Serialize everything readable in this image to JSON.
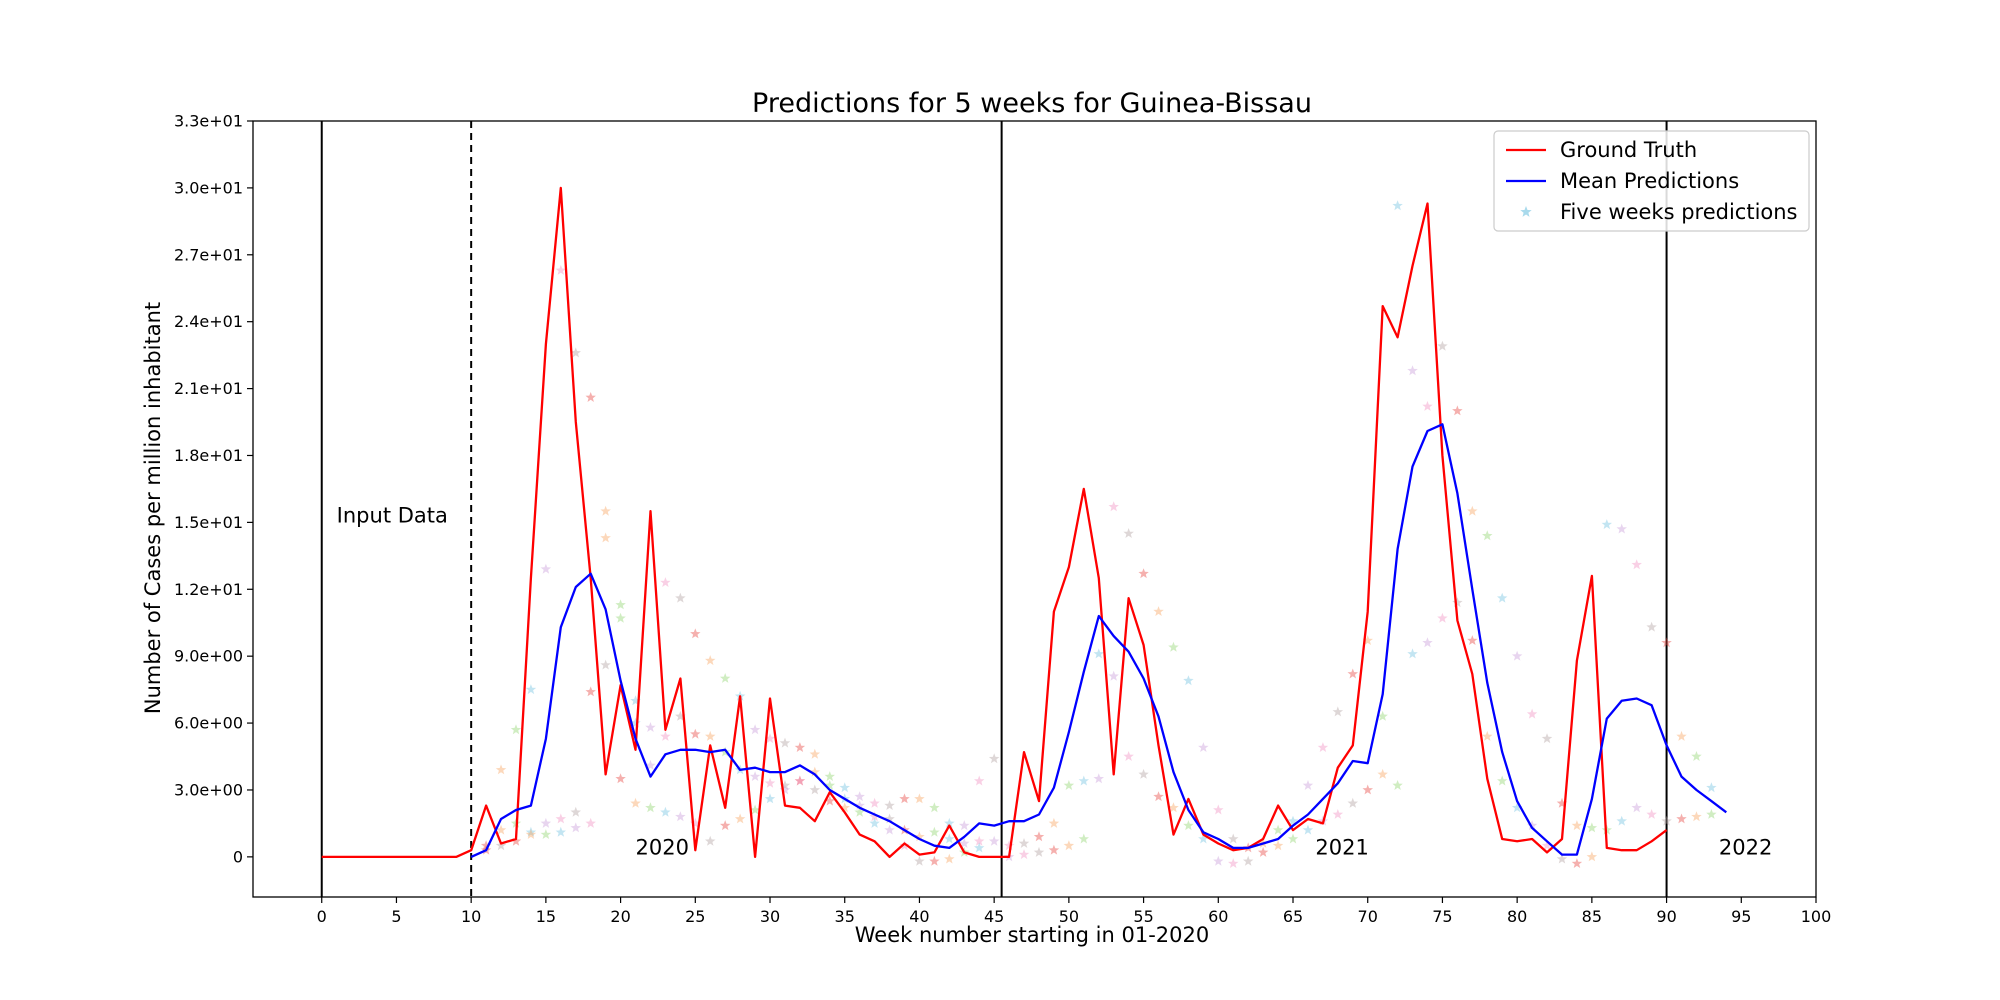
{
  "chart_data": {
    "type": "line",
    "title": "Predictions for 5 weeks for Guinea-Bissau",
    "xlabel": "Week number starting in 01-2020",
    "ylabel": "Number of Cases per million inhabitant",
    "xlim": [
      -4.6,
      100
    ],
    "ylim": [
      -1.8,
      33
    ],
    "x_ticks": [
      0,
      5,
      10,
      15,
      20,
      25,
      30,
      35,
      40,
      45,
      50,
      55,
      60,
      65,
      70,
      75,
      80,
      85,
      90,
      95,
      100
    ],
    "x_tick_labels": [
      "0",
      "5",
      "10",
      "15",
      "20",
      "25",
      "30",
      "35",
      "40",
      "45",
      "50",
      "55",
      "60",
      "65",
      "70",
      "75",
      "80",
      "85",
      "90",
      "95",
      "100"
    ],
    "y_ticks": [
      0,
      3,
      6,
      9,
      12,
      15,
      18,
      21,
      24,
      27,
      30,
      33
    ],
    "y_tick_labels": [
      "0",
      "3.0e+00",
      "6.0e+00",
      "9.0e+00",
      "1.2e+01",
      "1.5e+01",
      "1.8e+01",
      "2.1e+01",
      "2.4e+01",
      "2.7e+01",
      "3.0e+01",
      "3.3e+01"
    ],
    "grid": false,
    "legend_position": "top-right",
    "vertical_lines": [
      {
        "x": 0,
        "style": "solid"
      },
      {
        "x": 10,
        "style": "dashed"
      },
      {
        "x": 45.5,
        "style": "solid"
      },
      {
        "x": 90,
        "style": "solid"
      }
    ],
    "annotations": [
      {
        "text": "Input Data",
        "x": 1,
        "y": 15
      },
      {
        "text": "2020",
        "x": 21,
        "y": 0.1
      },
      {
        "text": "2021",
        "x": 66.5,
        "y": 0.1
      },
      {
        "text": "2022",
        "x": 93.5,
        "y": 0.1
      }
    ],
    "series": [
      {
        "name": "Ground Truth",
        "kind": "line",
        "color": "#ff0000",
        "x": [
          0,
          1,
          2,
          3,
          4,
          5,
          6,
          7,
          8,
          9,
          10,
          11,
          12,
          13,
          14,
          15,
          16,
          17,
          18,
          19,
          20,
          21,
          22,
          23,
          24,
          25,
          26,
          27,
          28,
          29,
          30,
          31,
          32,
          33,
          34,
          35,
          36,
          37,
          38,
          39,
          40,
          41,
          42,
          43,
          44,
          45,
          46,
          47,
          48,
          49,
          50,
          51,
          52,
          53,
          54,
          55,
          56,
          57,
          58,
          59,
          60,
          61,
          62,
          63,
          64,
          65,
          66,
          67,
          68,
          69,
          70,
          71,
          72,
          73,
          74,
          75,
          76,
          77,
          78,
          79,
          80,
          81,
          82,
          83,
          84,
          85,
          86,
          87,
          88,
          89,
          90
        ],
        "y": [
          0,
          0,
          0,
          0,
          0,
          0,
          0,
          0,
          0,
          0,
          0.3,
          2.3,
          0.6,
          0.8,
          12.5,
          23,
          30,
          19.5,
          12.5,
          3.7,
          7.7,
          4.8,
          15.5,
          5.7,
          8,
          0.3,
          5,
          2.2,
          7.2,
          0,
          7.1,
          2.3,
          2.2,
          1.6,
          2.9,
          2,
          1,
          0.7,
          0,
          0.6,
          0.1,
          0.2,
          1.4,
          0.2,
          0,
          0,
          0,
          4.7,
          2.5,
          11,
          13,
          16.5,
          12.5,
          3.7,
          11.6,
          9.5,
          5,
          1,
          2.6,
          1,
          0.6,
          0.3,
          0.4,
          0.8,
          2.3,
          1.2,
          1.7,
          1.5,
          4,
          5,
          11,
          24.7,
          23.3,
          26.5,
          29.3,
          18,
          10.6,
          8.2,
          3.5,
          0.8,
          0.7,
          0.8,
          0.2,
          0.8,
          8.8,
          12.6,
          0.4,
          0.3,
          0.3,
          0.7,
          1.2
        ]
      },
      {
        "name": "Mean Predictions",
        "kind": "line",
        "color": "#0000ff",
        "x": [
          10,
          11,
          12,
          13,
          14,
          15,
          16,
          17,
          18,
          19,
          20,
          21,
          22,
          23,
          24,
          25,
          26,
          27,
          28,
          29,
          30,
          31,
          32,
          33,
          34,
          35,
          36,
          37,
          38,
          39,
          40,
          41,
          42,
          43,
          44,
          45,
          46,
          47,
          48,
          49,
          50,
          51,
          52,
          53,
          54,
          55,
          56,
          57,
          58,
          59,
          60,
          61,
          62,
          63,
          64,
          65,
          66,
          67,
          68,
          69,
          70,
          71,
          72,
          73,
          74,
          75,
          76,
          77,
          78,
          79,
          80,
          81,
          82,
          83,
          84,
          85,
          86,
          87,
          88,
          89,
          90,
          91,
          92,
          93,
          94
        ],
        "y": [
          0,
          0.3,
          1.7,
          2.1,
          2.3,
          5.3,
          10.3,
          12.1,
          12.7,
          11.1,
          7.9,
          5.3,
          3.6,
          4.6,
          4.8,
          4.8,
          4.7,
          4.8,
          3.9,
          4,
          3.8,
          3.8,
          4.1,
          3.7,
          3,
          2.6,
          2.2,
          1.9,
          1.6,
          1.2,
          0.8,
          0.5,
          0.4,
          0.9,
          1.5,
          1.4,
          1.6,
          1.6,
          1.9,
          3.1,
          5.6,
          8.3,
          10.8,
          9.9,
          9.2,
          8,
          6.3,
          3.8,
          2.1,
          1.1,
          0.8,
          0.4,
          0.4,
          0.6,
          0.8,
          1.4,
          1.9,
          2.6,
          3.3,
          4.3,
          4.2,
          7.3,
          13.8,
          17.5,
          19.1,
          19.4,
          16.3,
          12,
          7.8,
          4.7,
          2.5,
          1.3,
          0.7,
          0.1,
          0.1,
          2.6,
          6.2,
          7,
          7.1,
          6.8,
          5,
          3.6,
          3,
          2.5,
          2
        ]
      },
      {
        "name": "Five weeks predictions",
        "kind": "scatter",
        "marker": "star",
        "color": "#6fc2e0",
        "palette": [
          "#e8433f",
          "#f7a35c",
          "#8fd36e",
          "#6fc2e0",
          "#c79ad9",
          "#f08fc0",
          "#b0a0a0"
        ],
        "x": [
          11,
          12,
          13,
          14,
          15,
          16,
          17,
          18,
          19,
          20,
          21,
          22,
          23,
          24,
          25,
          26,
          27,
          28,
          29,
          30,
          31,
          32,
          33,
          34,
          35,
          36,
          37,
          38,
          39,
          40,
          41,
          42,
          43,
          44,
          45,
          11,
          12,
          13,
          14,
          15,
          16,
          17,
          18,
          19,
          20,
          21,
          22,
          23,
          24,
          25,
          26,
          27,
          28,
          29,
          30,
          31,
          32,
          33,
          34,
          35,
          36,
          37,
          38,
          39,
          40,
          41,
          42,
          43,
          44,
          12,
          13,
          14,
          15,
          16,
          17,
          18,
          19,
          20,
          21,
          22,
          23,
          24,
          25,
          26,
          27,
          28,
          29,
          30,
          31,
          32,
          33,
          34,
          35,
          36,
          37,
          38,
          39,
          40,
          41,
          42,
          43,
          44,
          45,
          46,
          47,
          48,
          49,
          50,
          51,
          52,
          53,
          54,
          55,
          56,
          57,
          58,
          59,
          60,
          61,
          62,
          63,
          64,
          65,
          66,
          67,
          68,
          69,
          70,
          71,
          72,
          73,
          74,
          75,
          76,
          77,
          78,
          79,
          80,
          81,
          82,
          83,
          84,
          85,
          86,
          87,
          88,
          89,
          90,
          91,
          92,
          93,
          46,
          47,
          48,
          49,
          50,
          51,
          52,
          53,
          54,
          55,
          56,
          57,
          58,
          59,
          60,
          61,
          62,
          63,
          64,
          65,
          66,
          67,
          68,
          69,
          70,
          71,
          72,
          73,
          74,
          75,
          76,
          77,
          78,
          79,
          80,
          81,
          82,
          83,
          84,
          85,
          86,
          87,
          88,
          89,
          90,
          91,
          92,
          93
        ],
        "y": [
          0.5,
          3.9,
          5.7,
          7.5,
          12.9,
          26.3,
          22.6,
          20.6,
          15.5,
          11.3,
          7,
          5.8,
          12.3,
          11.6,
          10,
          8.8,
          8,
          7.2,
          5.7,
          5.3,
          5.1,
          4.9,
          4.6,
          3.6,
          3.1,
          2.7,
          2.4,
          2.3,
          2.6,
          2.6,
          2.2,
          1.5,
          1.4,
          3.4,
          4.4,
          0.3,
          1.2,
          1.5,
          1.1,
          1.5,
          1.7,
          2,
          7.4,
          14.3,
          10.7,
          6,
          4.1,
          5.4,
          6.3,
          5.5,
          5.4,
          4.7,
          3.9,
          3.6,
          3.3,
          3.2,
          3.4,
          3.8,
          3.2,
          2.6,
          2.3,
          1.8,
          1.7,
          1.2,
          0.9,
          1.1,
          0.8,
          0.6,
          0.7,
          0.5,
          0.7,
          1,
          1,
          1.1,
          1.3,
          1.5,
          8.6,
          3.5,
          2.4,
          2.2,
          2,
          1.8,
          1.5,
          0.7,
          1.4,
          1.7,
          2.1,
          2.6,
          3,
          3.4,
          3,
          2.5,
          2.2,
          2,
          1.5,
          1.2,
          0.5,
          -0.2,
          -0.2,
          -0.1,
          0.2,
          0.4,
          0.7,
          0.5,
          0.6,
          0.9,
          1.5,
          3.2,
          3.4,
          3.5,
          15.7,
          14.5,
          12.7,
          11,
          9.4,
          7.9,
          4.9,
          2.1,
          0.8,
          0.4,
          0.6,
          1.2,
          1.6,
          3.2,
          4.9,
          6.5,
          8.2,
          9.7,
          6.3,
          29.2,
          21.8,
          20.2,
          22.9,
          20,
          15.5,
          14.4,
          11.6,
          9,
          6.4,
          5.3,
          2.4,
          1.4,
          1.3,
          14.9,
          14.7,
          13.1,
          10.3,
          9.6,
          5.4,
          4.5,
          3.1,
          0,
          0.1,
          0.2,
          0.3,
          0.5,
          0.8,
          9.1,
          8.1,
          4.5,
          3.7,
          2.7,
          2.2,
          1.4,
          0.8,
          -0.2,
          -0.3,
          -0.2,
          0.2,
          0.5,
          0.8,
          1.2,
          1.6,
          1.9,
          2.4,
          3,
          3.7,
          3.2,
          9.1,
          9.6,
          10.7,
          11.4,
          9.7,
          5.4,
          3.4,
          2.2,
          1.4,
          0.5,
          -0.1,
          -0.3,
          0,
          1.2,
          1.6,
          2.2,
          1.9,
          1.6,
          1.7,
          1.8,
          1.9
        ]
      }
    ]
  }
}
